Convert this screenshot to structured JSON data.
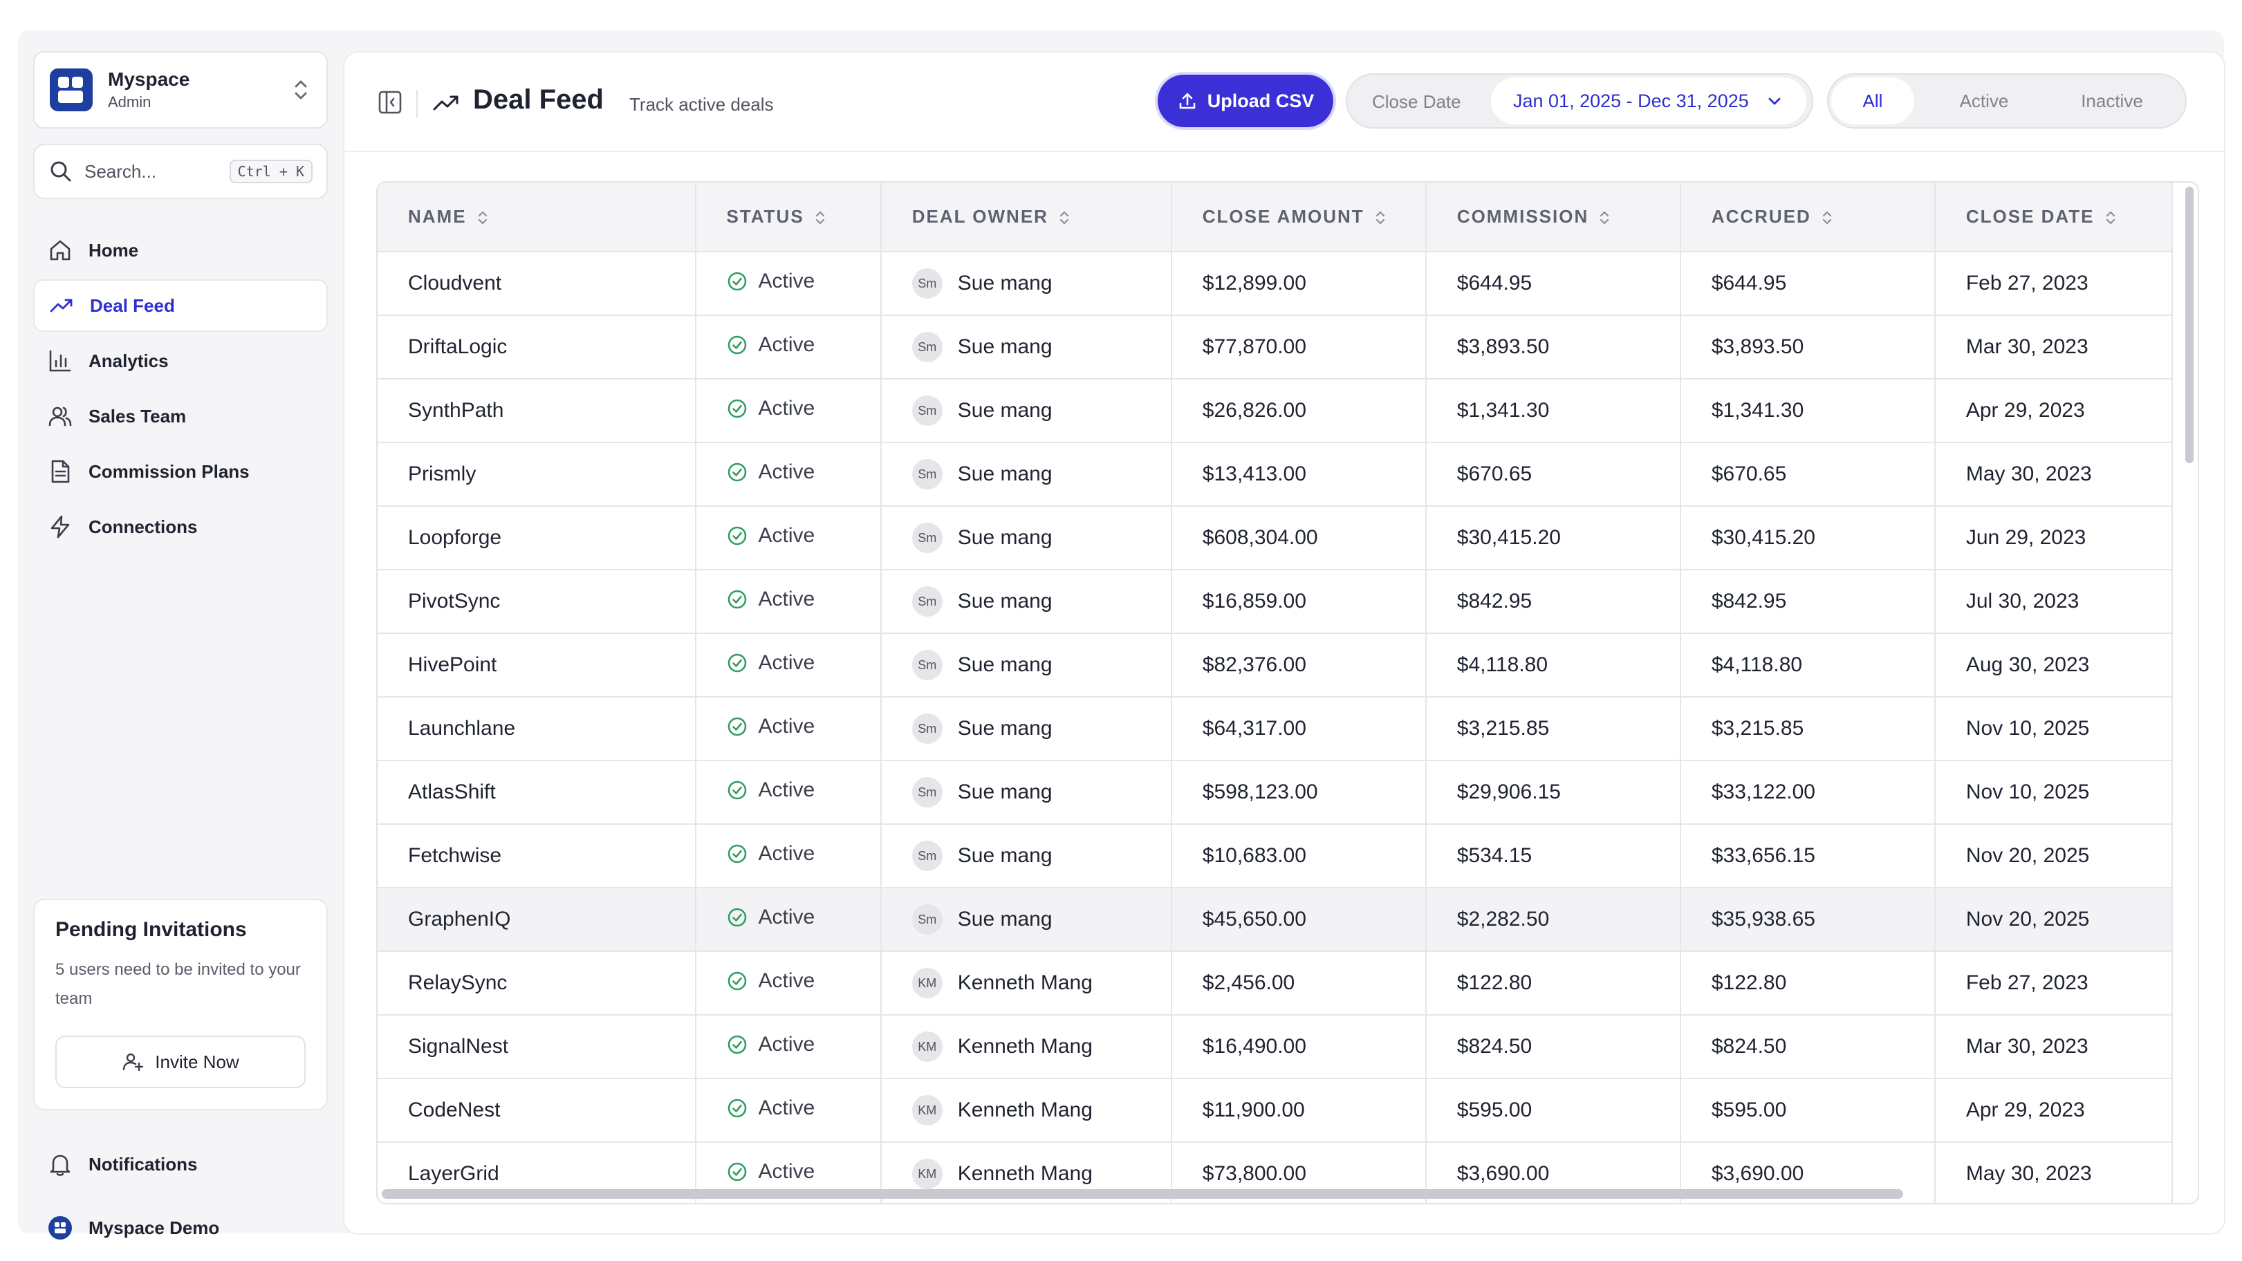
{
  "workspace": {
    "name": "Myspace",
    "role": "Admin",
    "icon": "workspace-logo-icon"
  },
  "search": {
    "placeholder": "Search...",
    "shortcut": "Ctrl + K"
  },
  "nav": {
    "items": [
      {
        "label": "Home",
        "icon": "home-icon"
      },
      {
        "label": "Deal Feed",
        "icon": "trending-up-icon",
        "active": true
      },
      {
        "label": "Analytics",
        "icon": "bar-chart-icon"
      },
      {
        "label": "Sales Team",
        "icon": "users-icon"
      },
      {
        "label": "Commission Plans",
        "icon": "document-icon"
      },
      {
        "label": "Connections",
        "icon": "lightning-icon"
      }
    ]
  },
  "pending": {
    "title": "Pending Invitations",
    "text": "5 users need to be invited to your team",
    "button": "Invite Now"
  },
  "bottom_nav": {
    "notifications": "Notifications",
    "account": "Myspace Demo"
  },
  "header": {
    "title": "Deal Feed",
    "subtitle": "Track active deals",
    "upload_label": "Upload CSV",
    "date_filter_label": "Close Date",
    "date_range": "Jan 01, 2025 - Dec 31, 2025",
    "status_filters": [
      "All",
      "Active",
      "Inactive"
    ],
    "status_selected": "All"
  },
  "colors": {
    "accent": "#3b30d8",
    "accent_text": "#2e2fd0",
    "active_status": "#2f9e5f"
  },
  "table": {
    "columns": [
      "NAME",
      "STATUS",
      "DEAL OWNER",
      "CLOSE AMOUNT",
      "COMMISSION",
      "ACCRUED",
      "CLOSE DATE"
    ],
    "rows": [
      {
        "name": "Cloudvent",
        "status": "Active",
        "owner_initials": "Sm",
        "owner": "Sue mang",
        "amount": "$12,899.00",
        "commission": "$644.95",
        "accrued": "$644.95",
        "close_date": "Feb 27, 2023"
      },
      {
        "name": "DriftaLogic",
        "status": "Active",
        "owner_initials": "Sm",
        "owner": "Sue mang",
        "amount": "$77,870.00",
        "commission": "$3,893.50",
        "accrued": "$3,893.50",
        "close_date": "Mar 30, 2023"
      },
      {
        "name": "SynthPath",
        "status": "Active",
        "owner_initials": "Sm",
        "owner": "Sue mang",
        "amount": "$26,826.00",
        "commission": "$1,341.30",
        "accrued": "$1,341.30",
        "close_date": "Apr 29, 2023"
      },
      {
        "name": "Prismly",
        "status": "Active",
        "owner_initials": "Sm",
        "owner": "Sue mang",
        "amount": "$13,413.00",
        "commission": "$670.65",
        "accrued": "$670.65",
        "close_date": "May 30, 2023"
      },
      {
        "name": "Loopforge",
        "status": "Active",
        "owner_initials": "Sm",
        "owner": "Sue mang",
        "amount": "$608,304.00",
        "commission": "$30,415.20",
        "accrued": "$30,415.20",
        "close_date": "Jun 29, 2023"
      },
      {
        "name": "PivotSync",
        "status": "Active",
        "owner_initials": "Sm",
        "owner": "Sue mang",
        "amount": "$16,859.00",
        "commission": "$842.95",
        "accrued": "$842.95",
        "close_date": "Jul 30, 2023"
      },
      {
        "name": "HivePoint",
        "status": "Active",
        "owner_initials": "Sm",
        "owner": "Sue mang",
        "amount": "$82,376.00",
        "commission": "$4,118.80",
        "accrued": "$4,118.80",
        "close_date": "Aug 30, 2023"
      },
      {
        "name": "Launchlane",
        "status": "Active",
        "owner_initials": "Sm",
        "owner": "Sue mang",
        "amount": "$64,317.00",
        "commission": "$3,215.85",
        "accrued": "$3,215.85",
        "close_date": "Nov 10, 2025"
      },
      {
        "name": "AtlasShift",
        "status": "Active",
        "owner_initials": "Sm",
        "owner": "Sue mang",
        "amount": "$598,123.00",
        "commission": "$29,906.15",
        "accrued": "$33,122.00",
        "close_date": "Nov 10, 2025"
      },
      {
        "name": "Fetchwise",
        "status": "Active",
        "owner_initials": "Sm",
        "owner": "Sue mang",
        "amount": "$10,683.00",
        "commission": "$534.15",
        "accrued": "$33,656.15",
        "close_date": "Nov 20, 2025"
      },
      {
        "name": "GraphenIQ",
        "status": "Active",
        "owner_initials": "Sm",
        "owner": "Sue mang",
        "amount": "$45,650.00",
        "commission": "$2,282.50",
        "accrued": "$35,938.65",
        "close_date": "Nov 20, 2025",
        "highlighted": true
      },
      {
        "name": "RelaySync",
        "status": "Active",
        "owner_initials": "KM",
        "owner": "Kenneth Mang",
        "amount": "$2,456.00",
        "commission": "$122.80",
        "accrued": "$122.80",
        "close_date": "Feb 27, 2023"
      },
      {
        "name": "SignalNest",
        "status": "Active",
        "owner_initials": "KM",
        "owner": "Kenneth Mang",
        "amount": "$16,490.00",
        "commission": "$824.50",
        "accrued": "$824.50",
        "close_date": "Mar 30, 2023"
      },
      {
        "name": "CodeNest",
        "status": "Active",
        "owner_initials": "KM",
        "owner": "Kenneth Mang",
        "amount": "$11,900.00",
        "commission": "$595.00",
        "accrued": "$595.00",
        "close_date": "Apr 29, 2023"
      },
      {
        "name": "LayerGrid",
        "status": "Active",
        "owner_initials": "KM",
        "owner": "Kenneth Mang",
        "amount": "$73,800.00",
        "commission": "$3,690.00",
        "accrued": "$3,690.00",
        "close_date": "May 30, 2023"
      }
    ]
  }
}
